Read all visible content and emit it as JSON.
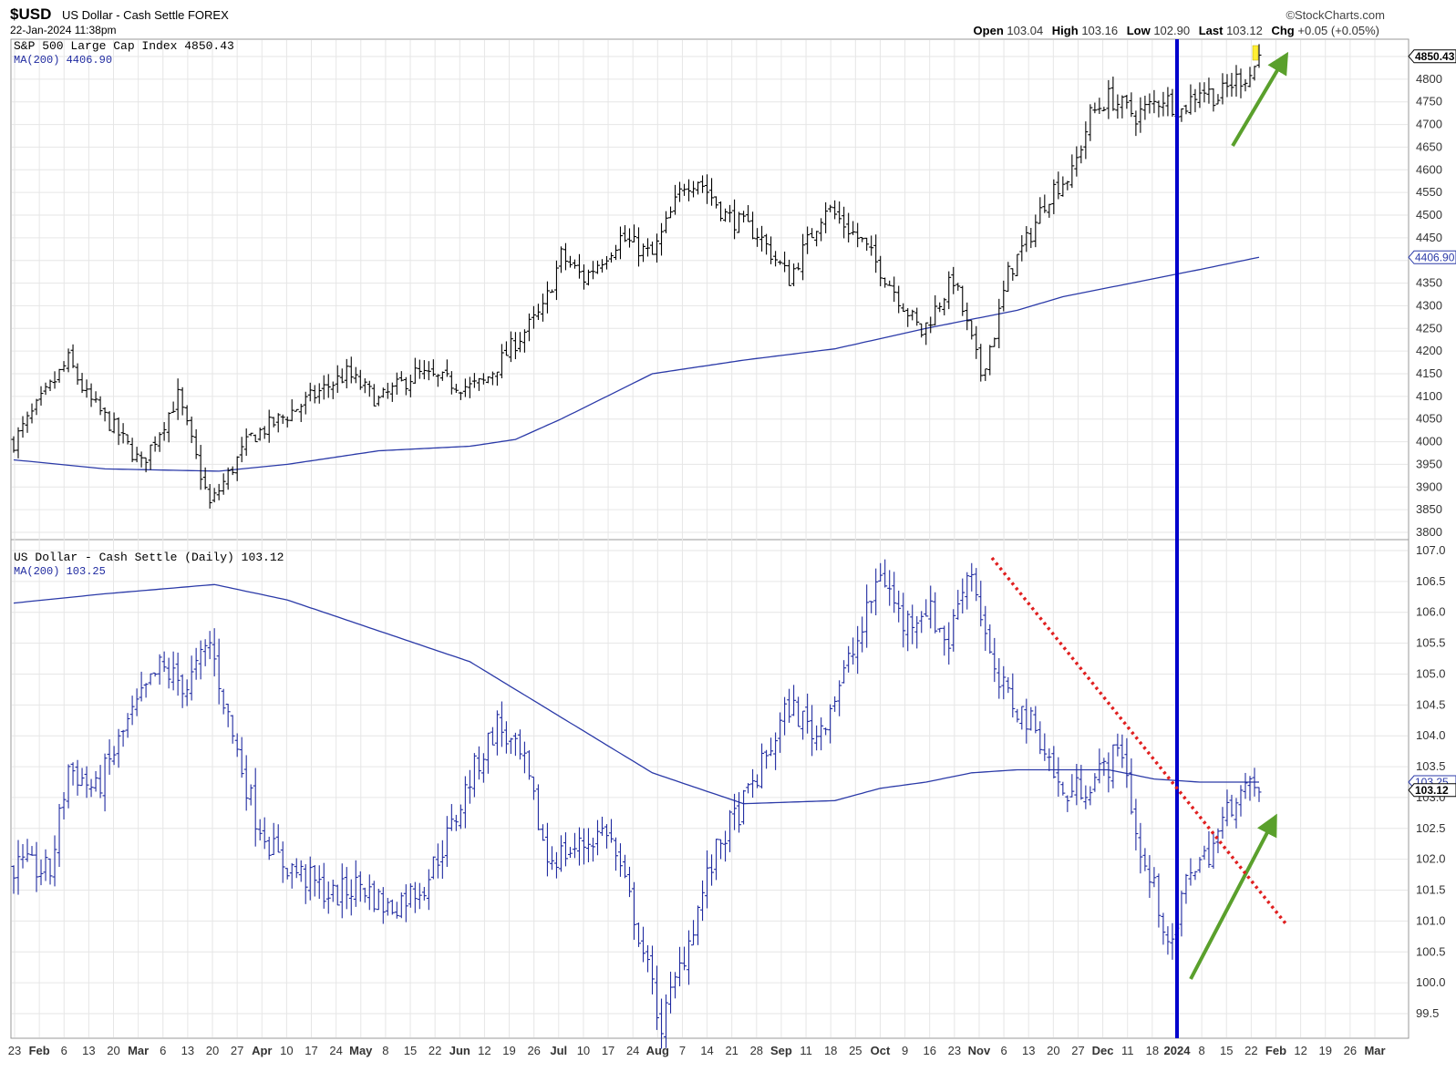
{
  "header": {
    "symbol": "$USD",
    "name": "US Dollar - Cash Settle FOREX",
    "datetime": "22-Jan-2024 11:38pm",
    "brand": "©StockCharts.com",
    "open_label": "Open",
    "open": "103.04",
    "high_label": "High",
    "high": "103.16",
    "low_label": "Low",
    "low": "102.90",
    "last_label": "Last",
    "last": "103.12",
    "chg_label": "Chg",
    "chg": "+0.05 (+0.05%)"
  },
  "colors": {
    "accent": "#1f2aa0",
    "trend_up": "#5aa02c",
    "trend_down": "#e02020",
    "marker": "#0000cc"
  },
  "chart_data": [
    {
      "type": "ohlc",
      "title": "S&P 500 Large Cap Index 4850.43",
      "legend": "MA(200) 4406.90",
      "last_label": "4850.43",
      "ma_label": "4406.90",
      "ylim": [
        3780,
        4880
      ],
      "yticks": [
        "3800",
        "3850",
        "3900",
        "3950",
        "4000",
        "4050",
        "4100",
        "4150",
        "4200",
        "4250",
        "4300",
        "4350",
        "4400",
        "4450",
        "4500",
        "4550",
        "4600",
        "4650",
        "4700",
        "4750",
        "4800",
        "4850"
      ],
      "anchors_x": [
        0,
        12,
        16,
        22,
        28,
        36,
        43,
        52,
        60,
        67,
        73,
        80,
        88,
        100,
        103,
        110,
        116,
        120,
        125,
        133,
        140,
        147,
        150,
        156,
        163,
        170,
        178,
        186,
        192,
        199,
        206,
        212,
        215,
        218,
        223,
        226,
        228,
        232,
        236,
        240,
        246,
        252,
        256,
        260,
        264,
        268,
        271,
        273
      ],
      "anchors_y": [
        4000,
        4180,
        4100,
        4030,
        3950,
        4100,
        3860,
        4010,
        4060,
        4110,
        4150,
        4090,
        4150,
        4120,
        4130,
        4220,
        4290,
        4410,
        4360,
        4450,
        4410,
        4570,
        4580,
        4500,
        4460,
        4360,
        4520,
        4440,
        4350,
        4240,
        4360,
        4150,
        4240,
        4370,
        4460,
        4530,
        4560,
        4590,
        4720,
        4760,
        4720,
        4760,
        4730,
        4780,
        4760,
        4800,
        4810,
        4850
      ],
      "ma_anchors_x": [
        0,
        20,
        45,
        60,
        80,
        100,
        110,
        120,
        140,
        160,
        180,
        200,
        220,
        230,
        240,
        250,
        260,
        273
      ],
      "ma_anchors_y": [
        3960,
        3940,
        3935,
        3950,
        3980,
        3990,
        4005,
        4050,
        4150,
        4180,
        4205,
        4250,
        4290,
        4320,
        4340,
        4360,
        4380,
        4406.9
      ]
    },
    {
      "type": "ohlc",
      "title": "US Dollar - Cash Settle (Daily) 103.12",
      "legend": "MA(200) 103.25",
      "last_label": "103.12",
      "ma_label": "103.25",
      "ylim": [
        99.2,
        107.1
      ],
      "yticks": [
        "99.5",
        "100.0",
        "100.5",
        "101.0",
        "101.5",
        "102.0",
        "102.5",
        "103.0",
        "103.5",
        "104.0",
        "104.5",
        "105.0",
        "105.5",
        "106.0",
        "106.5",
        "107.0"
      ],
      "anchors_x": [
        0,
        8,
        12,
        18,
        25,
        32,
        38,
        43,
        48,
        53,
        58,
        64,
        70,
        76,
        82,
        90,
        96,
        100,
        106,
        112,
        117,
        124,
        130,
        136,
        142,
        148,
        152,
        155,
        160,
        164,
        170,
        176,
        182,
        186,
        190,
        195,
        200,
        205,
        208,
        210,
        215,
        225,
        230,
        237,
        243,
        247,
        250,
        252,
        254,
        256,
        258,
        261,
        264,
        268,
        273
      ],
      "anchors_y": [
        101.9,
        101.8,
        103.5,
        103.1,
        104.2,
        105.1,
        104.8,
        105.5,
        104.0,
        102.7,
        102.0,
        101.7,
        101.4,
        101.6,
        101.2,
        101.6,
        102.5,
        103.3,
        104.2,
        103.5,
        102.0,
        102.2,
        102.5,
        101.1,
        99.3,
        100.7,
        101.7,
        102.3,
        102.9,
        103.5,
        104.5,
        104.0,
        105.0,
        105.7,
        106.7,
        105.8,
        106.1,
        105.5,
        106.5,
        106.7,
        104.9,
        104.0,
        103.0,
        103.3,
        103.8,
        102.0,
        101.5,
        101.0,
        100.5,
        101.3,
        101.9,
        102.0,
        102.4,
        103.1,
        103.12
      ],
      "ma_anchors_x": [
        0,
        20,
        36,
        44,
        60,
        80,
        100,
        120,
        140,
        160,
        180,
        185,
        190,
        200,
        210,
        220,
        225,
        230,
        240,
        250,
        260,
        273
      ],
      "ma_anchors_y": [
        106.15,
        106.3,
        106.4,
        106.45,
        106.2,
        105.7,
        105.2,
        104.3,
        103.4,
        102.9,
        102.95,
        103.05,
        103.15,
        103.25,
        103.4,
        103.45,
        103.45,
        103.45,
        103.45,
        103.3,
        103.25,
        103.25
      ]
    }
  ],
  "x_axis": {
    "labels": [
      "23",
      "Feb",
      "6",
      "13",
      "20",
      "Mar",
      "6",
      "13",
      "20",
      "27",
      "Apr",
      "10",
      "17",
      "24",
      "May",
      "8",
      "15",
      "22",
      "Jun",
      "12",
      "19",
      "26",
      "Jul",
      "10",
      "17",
      "24",
      "Aug",
      "7",
      "14",
      "21",
      "28",
      "Sep",
      "11",
      "18",
      "25",
      "Oct",
      "9",
      "16",
      "23",
      "Nov",
      "6",
      "13",
      "20",
      "27",
      "Dec",
      "11",
      "18",
      "2024",
      "8",
      "15",
      "22",
      "Feb",
      "12",
      "19",
      "26",
      "Mar"
    ],
    "bold": [
      "Feb",
      "Mar",
      "Apr",
      "May",
      "Jun",
      "Jul",
      "Aug",
      "Sep",
      "Oct",
      "Nov",
      "Dec",
      "2024",
      "Feb",
      "Mar"
    ]
  }
}
